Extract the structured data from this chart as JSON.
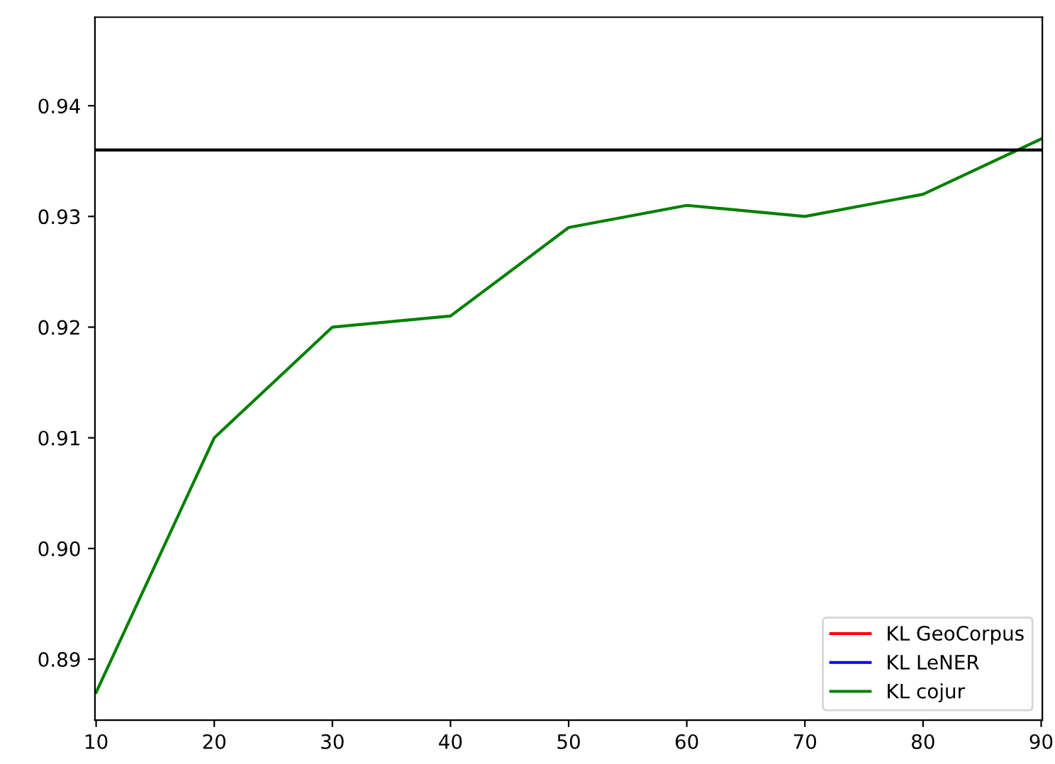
{
  "chart_data": {
    "type": "line",
    "x": [
      10,
      20,
      30,
      40,
      50,
      60,
      70,
      80,
      90
    ],
    "series": [
      {
        "name": "KL GeoCorpus",
        "color": "#ff0000",
        "values": [
          null,
          null,
          null,
          null,
          null,
          null,
          null,
          null,
          null
        ]
      },
      {
        "name": "KL LeNER",
        "color": "#0000ff",
        "values": [
          null,
          null,
          null,
          null,
          null,
          null,
          null,
          null,
          null
        ]
      },
      {
        "name": "KL cojur",
        "color": "#008000",
        "values": [
          0.887,
          0.91,
          0.92,
          0.921,
          0.929,
          0.931,
          0.93,
          0.932,
          0.937
        ]
      }
    ],
    "ref_lines": [
      {
        "axis": "y",
        "value": 0.936,
        "color": "#000000"
      }
    ],
    "xlim": [
      9.9,
      90.1
    ],
    "xticks": [
      10,
      20,
      30,
      40,
      50,
      60,
      70,
      80,
      90
    ],
    "ylim": [
      0.8845,
      0.948
    ],
    "yticks": [
      {
        "value": 0.89,
        "label": "0.89"
      },
      {
        "value": 0.9,
        "label": "0.90"
      },
      {
        "value": 0.91,
        "label": "0.91"
      },
      {
        "value": 0.92,
        "label": "0.92"
      },
      {
        "value": 0.93,
        "label": "0.93"
      },
      {
        "value": 0.94,
        "label": "0.94"
      }
    ],
    "legend": "lower right",
    "grid": false
  }
}
